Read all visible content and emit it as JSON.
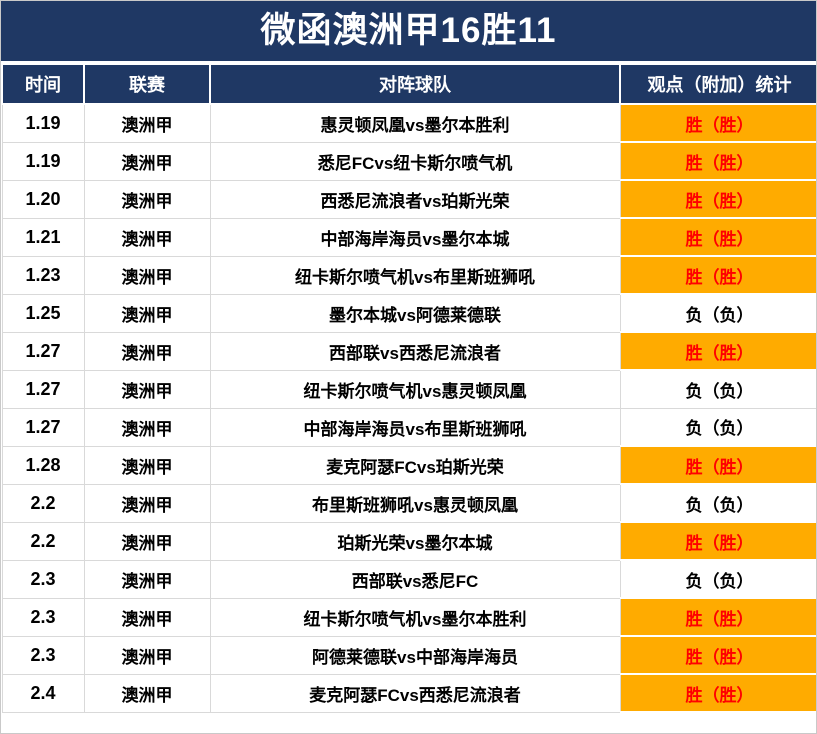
{
  "title": "微函澳洲甲16胜11",
  "colors": {
    "navy": "#1F3864",
    "orange": "#FFAB00",
    "win_text": "#FF0000",
    "loss_text": "#000000"
  },
  "chart_data": {
    "type": "table",
    "title": "微函澳洲甲16胜11",
    "columns": [
      "时间",
      "联赛",
      "对阵球队",
      "观点（附加）统计"
    ],
    "rows": [
      {
        "time": "1.19",
        "league": "澳洲甲",
        "match": "惠灵顿凤凰vs墨尔本胜利",
        "result": "胜（胜）",
        "win": true
      },
      {
        "time": "1.19",
        "league": "澳洲甲",
        "match": "悉尼FCvs纽卡斯尔喷气机",
        "result": "胜（胜）",
        "win": true
      },
      {
        "time": "1.20",
        "league": "澳洲甲",
        "match": "西悉尼流浪者vs珀斯光荣",
        "result": "胜（胜）",
        "win": true
      },
      {
        "time": "1.21",
        "league": "澳洲甲",
        "match": "中部海岸海员vs墨尔本城",
        "result": "胜（胜）",
        "win": true
      },
      {
        "time": "1.23",
        "league": "澳洲甲",
        "match": "纽卡斯尔喷气机vs布里斯班狮吼",
        "result": "胜（胜）",
        "win": true
      },
      {
        "time": "1.25",
        "league": "澳洲甲",
        "match": "墨尔本城vs阿德莱德联",
        "result": "负（负）",
        "win": false
      },
      {
        "time": "1.27",
        "league": "澳洲甲",
        "match": "西部联vs西悉尼流浪者",
        "result": "胜（胜）",
        "win": true
      },
      {
        "time": "1.27",
        "league": "澳洲甲",
        "match": "纽卡斯尔喷气机vs惠灵顿凤凰",
        "result": "负（负）",
        "win": false
      },
      {
        "time": "1.27",
        "league": "澳洲甲",
        "match": "中部海岸海员vs布里斯班狮吼",
        "result": "负（负）",
        "win": false
      },
      {
        "time": "1.28",
        "league": "澳洲甲",
        "match": "麦克阿瑟FCvs珀斯光荣",
        "result": "胜（胜）",
        "win": true
      },
      {
        "time": "2.2",
        "league": "澳洲甲",
        "match": "布里斯班狮吼vs惠灵顿凤凰",
        "result": "负（负）",
        "win": false
      },
      {
        "time": "2.2",
        "league": "澳洲甲",
        "match": "珀斯光荣vs墨尔本城",
        "result": "胜（胜）",
        "win": true
      },
      {
        "time": "2.3",
        "league": "澳洲甲",
        "match": "西部联vs悉尼FC",
        "result": "负（负）",
        "win": false
      },
      {
        "time": "2.3",
        "league": "澳洲甲",
        "match": "纽卡斯尔喷气机vs墨尔本胜利",
        "result": "胜（胜）",
        "win": true
      },
      {
        "time": "2.3",
        "league": "澳洲甲",
        "match": "阿德莱德联vs中部海岸海员",
        "result": "胜（胜）",
        "win": true
      },
      {
        "time": "2.4",
        "league": "澳洲甲",
        "match": "麦克阿瑟FCvs西悉尼流浪者",
        "result": "胜（胜）",
        "win": true
      }
    ]
  }
}
